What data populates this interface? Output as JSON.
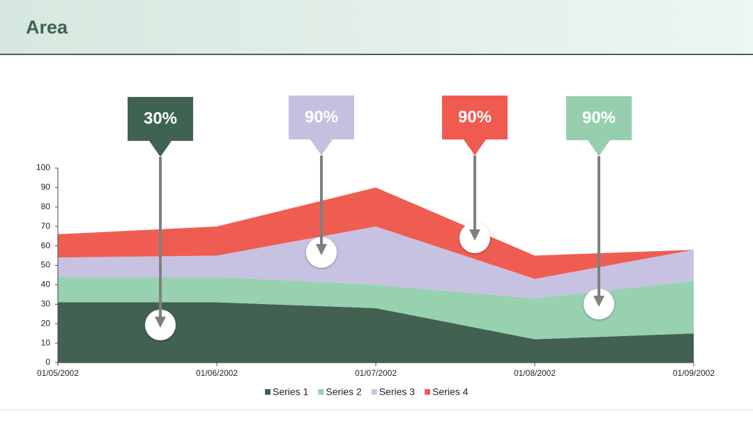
{
  "chart_data": {
    "type": "stacked-area",
    "title": "Area",
    "categories": [
      "01/05/2002",
      "01/06/2002",
      "01/07/2002",
      "01/08/2002",
      "01/09/2002"
    ],
    "series": [
      {
        "name": "Series 1",
        "color": "#426150",
        "values": [
          31,
          31,
          28,
          12,
          15
        ]
      },
      {
        "name": "Series 2",
        "color": "#97d1b0",
        "values": [
          13,
          13,
          12,
          21,
          27
        ]
      },
      {
        "name": "Series 3",
        "color": "#c8c2e2",
        "values": [
          10,
          11,
          30,
          10,
          16
        ]
      },
      {
        "name": "Series 4",
        "color": "#ef5d52",
        "values": [
          12,
          15,
          20,
          12,
          0
        ]
      }
    ],
    "ylim": [
      0,
      100
    ],
    "yticks": [
      0,
      10,
      20,
      30,
      40,
      50,
      60,
      70,
      80,
      90,
      100
    ],
    "legend": "bottom",
    "annotations": [
      {
        "label": "30%",
        "color": "#3f6352"
      },
      {
        "label": "90%",
        "color": "#c5bfe0"
      },
      {
        "label": "90%",
        "color": "#ef5b50"
      },
      {
        "label": "90%",
        "color": "#95cfae"
      }
    ]
  }
}
